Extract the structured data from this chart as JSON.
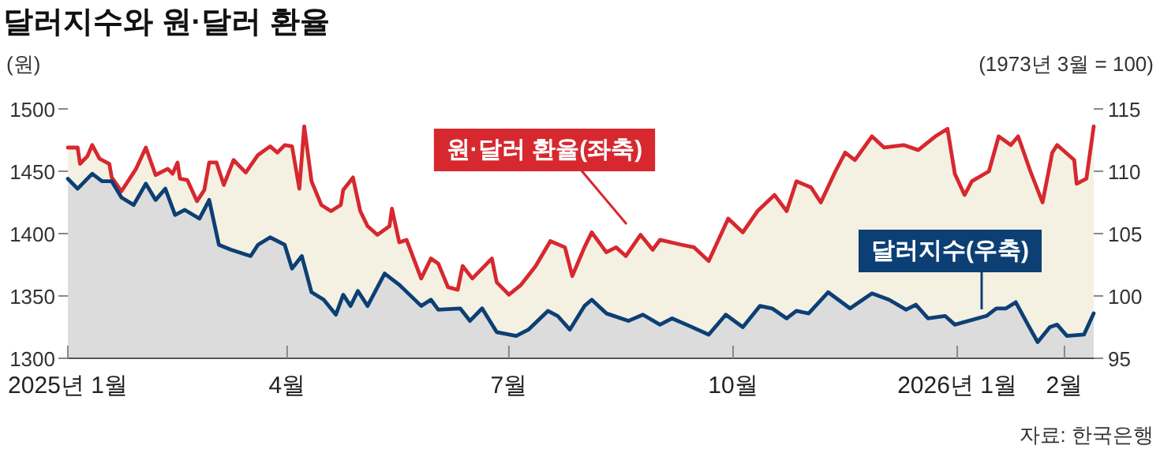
{
  "chart_data": {
    "type": "area",
    "title": "달러지수와 원·달러 환율",
    "ylabel": "(원)",
    "y2label": "(1973년 3월 = 100)",
    "xlim": [
      "2025-01-01",
      "2026-02-26"
    ],
    "xticks": [
      {
        "value": "2025-01-01",
        "label": "2025년 1월"
      },
      {
        "value": "2025-04-01",
        "label": "4월"
      },
      {
        "value": "2025-07-01",
        "label": "7월"
      },
      {
        "value": "2025-10-01",
        "label": "10월"
      },
      {
        "value": "2026-01-01",
        "label": "2026년 1월"
      },
      {
        "value": "2026-02-14",
        "label": "2월"
      }
    ],
    "ylim": [
      1300,
      1500
    ],
    "yticks": [
      1300,
      1350,
      1400,
      1450,
      1500
    ],
    "y2lim": [
      95,
      115
    ],
    "y2ticks": [
      95,
      100,
      105,
      110,
      115
    ],
    "grid": false,
    "annotations": [
      "원·달러 환율(좌축)",
      "달러지수(우축)",
      "자료: 한국은행"
    ],
    "series": [
      {
        "color": "#d7282f",
        "x": [
          "2025-01-01",
          "2025-01-05",
          "2025-01-06",
          "2025-01-09",
          "2025-01-11",
          "2025-01-14",
          "2025-01-18",
          "2025-01-19",
          "2025-01-23",
          "2025-01-29",
          "2025-02-02",
          "2025-02-06",
          "2025-02-11",
          "2025-02-13",
          "2025-02-15",
          "2025-02-16",
          "2025-02-19",
          "2025-02-23",
          "2025-02-26",
          "2025-02-28",
          "2025-03-03",
          "2025-03-06",
          "2025-03-10",
          "2025-03-15",
          "2025-03-20",
          "2025-03-25",
          "2025-03-28",
          "2025-03-31",
          "2025-04-03",
          "2025-04-06",
          "2025-04-08",
          "2025-04-11",
          "2025-04-15",
          "2025-04-19",
          "2025-04-23",
          "2025-04-24",
          "2025-04-28",
          "2025-05-01",
          "2025-05-04",
          "2025-05-08",
          "2025-05-13",
          "2025-05-14",
          "2025-05-17",
          "2025-05-20",
          "2025-05-26",
          "2025-05-30",
          "2025-06-02",
          "2025-06-06",
          "2025-06-10",
          "2025-06-12",
          "2025-06-16",
          "2025-06-24",
          "2025-06-26",
          "2025-07-01",
          "2025-07-06",
          "2025-07-12",
          "2025-07-18",
          "2025-07-24",
          "2025-07-27",
          "2025-08-01",
          "2025-08-04",
          "2025-08-10",
          "2025-08-14",
          "2025-08-18",
          "2025-08-24",
          "2025-08-29",
          "2025-09-01",
          "2025-09-10",
          "2025-09-15",
          "2025-09-21",
          "2025-09-29",
          "2025-10-05",
          "2025-10-11",
          "2025-10-18",
          "2025-10-23",
          "2025-10-27",
          "2025-11-02",
          "2025-11-06",
          "2025-11-12",
          "2025-11-16",
          "2025-11-20",
          "2025-11-27",
          "2025-12-02",
          "2025-12-10",
          "2025-12-16",
          "2025-12-23",
          "2025-12-28",
          "2025-12-31",
          "2026-01-04",
          "2026-01-07",
          "2026-01-14",
          "2026-01-18",
          "2026-01-23",
          "2026-01-26",
          "2026-01-31",
          "2026-02-05",
          "2026-02-09",
          "2026-02-11",
          "2026-02-18",
          "2026-02-19",
          "2026-02-23",
          "2026-02-26"
        ],
        "values": [
          1469,
          1469,
          1456,
          1462,
          1471,
          1460,
          1456,
          1445,
          1434,
          1452,
          1469,
          1447,
          1452,
          1448,
          1457,
          1444,
          1443,
          1426,
          1435,
          1457,
          1457,
          1439,
          1459,
          1449,
          1463,
          1470,
          1465,
          1471,
          1470,
          1436,
          1486,
          1442,
          1423,
          1418,
          1423,
          1435,
          1445,
          1418,
          1406,
          1399,
          1406,
          1420,
          1393,
          1395,
          1364,
          1380,
          1376,
          1357,
          1355,
          1374,
          1364,
          1380,
          1361,
          1351,
          1359,
          1374,
          1394,
          1389,
          1366,
          1389,
          1401,
          1385,
          1389,
          1382,
          1399,
          1387,
          1395,
          1391,
          1389,
          1378,
          1412,
          1401,
          1418,
          1431,
          1418,
          1442,
          1437,
          1425,
          1450,
          1465,
          1459,
          1478,
          1469,
          1471,
          1467,
          1478,
          1484,
          1448,
          1431,
          1442,
          1450,
          1478,
          1471,
          1478,
          1450,
          1425,
          1465,
          1471,
          1459,
          1440,
          1444,
          1486
        ]
      },
      {
        "color": "#0c3f74",
        "axis": "y2",
        "x": [
          "2025-01-01",
          "2025-01-05",
          "2025-01-11",
          "2025-01-15",
          "2025-01-19",
          "2025-01-23",
          "2025-01-28",
          "2025-02-02",
          "2025-02-06",
          "2025-02-10",
          "2025-02-14",
          "2025-02-18",
          "2025-02-24",
          "2025-02-28",
          "2025-03-04",
          "2025-03-09",
          "2025-03-17",
          "2025-03-20",
          "2025-03-25",
          "2025-03-31",
          "2025-04-03",
          "2025-04-07",
          "2025-04-11",
          "2025-04-16",
          "2025-04-21",
          "2025-04-24",
          "2025-04-27",
          "2025-04-30",
          "2025-05-04",
          "2025-05-11",
          "2025-05-17",
          "2025-05-26",
          "2025-05-30",
          "2025-06-02",
          "2025-06-11",
          "2025-06-15",
          "2025-06-20",
          "2025-06-26",
          "2025-07-04",
          "2025-07-09",
          "2025-07-17",
          "2025-07-21",
          "2025-07-26",
          "2025-08-01",
          "2025-08-04",
          "2025-08-10",
          "2025-08-19",
          "2025-08-25",
          "2025-09-01",
          "2025-09-06",
          "2025-09-13",
          "2025-09-21",
          "2025-09-28",
          "2025-10-05",
          "2025-10-12",
          "2025-10-17",
          "2025-10-23",
          "2025-10-27",
          "2025-11-01",
          "2025-11-09",
          "2025-11-18",
          "2025-11-27",
          "2025-12-04",
          "2025-12-11",
          "2025-12-15",
          "2025-12-20",
          "2025-12-27",
          "2025-12-31",
          "2026-01-13",
          "2026-01-17",
          "2026-01-21",
          "2026-01-25",
          "2026-01-30",
          "2026-02-03",
          "2026-02-08",
          "2026-02-11",
          "2026-02-15",
          "2026-02-22",
          "2026-02-26"
        ],
        "values": [
          109.4,
          108.6,
          109.8,
          109.2,
          109.2,
          107.9,
          107.3,
          109.0,
          107.7,
          108.6,
          106.5,
          106.9,
          106.2,
          107.7,
          104.1,
          103.7,
          103.2,
          104.1,
          104.7,
          104.1,
          102.2,
          103.2,
          100.3,
          99.7,
          98.5,
          100.1,
          99.2,
          100.4,
          99.2,
          101.8,
          100.9,
          99.2,
          99.7,
          98.9,
          99.0,
          98.0,
          99.0,
          97.1,
          96.8,
          97.3,
          98.8,
          98.4,
          97.3,
          99.2,
          99.7,
          98.6,
          98.0,
          98.5,
          97.7,
          98.2,
          97.6,
          96.9,
          98.5,
          97.5,
          99.2,
          99.0,
          98.2,
          98.8,
          98.6,
          100.3,
          99.0,
          100.2,
          99.7,
          98.9,
          99.3,
          98.2,
          98.4,
          97.7,
          98.4,
          99.0,
          99.0,
          99.5,
          97.7,
          96.3,
          97.5,
          97.7,
          96.8,
          96.9,
          98.6
        ]
      }
    ]
  }
}
